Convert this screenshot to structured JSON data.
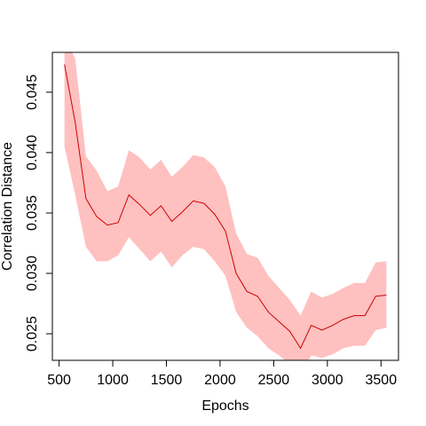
{
  "chart_data": {
    "type": "line",
    "title": "",
    "xlabel": "Epochs",
    "ylabel": "Correlation Distance",
    "xlim": [
      550,
      3550
    ],
    "ylim": [
      0.0228,
      0.0483
    ],
    "xticks": [
      500,
      1000,
      1500,
      2000,
      2500,
      3000,
      3500
    ],
    "xtick_labels": [
      "500",
      "1000",
      "1500",
      "2000",
      "2500",
      "3000",
      "3500"
    ],
    "yticks": [
      0.025,
      0.03,
      0.035,
      0.04,
      0.045
    ],
    "ytick_labels": [
      "0.025",
      "0.030",
      "0.035",
      "0.040",
      "0.045"
    ],
    "grid": false,
    "line_color": "#cc0000",
    "band_color": "#ffc0c0",
    "series": [
      {
        "x": [
          550,
          650,
          750,
          850,
          950,
          1050,
          1150,
          1250,
          1350,
          1450,
          1550,
          1650,
          1750,
          1850,
          1950,
          2050,
          2150,
          2250,
          2350,
          2450,
          2550,
          2650,
          2750,
          2850,
          2950,
          3050,
          3150,
          3250,
          3350,
          3450,
          3550
        ],
        "values": [
          0.0473,
          0.0425,
          0.0362,
          0.0347,
          0.034,
          0.0342,
          0.0365,
          0.0357,
          0.0348,
          0.0356,
          0.0343,
          0.0351,
          0.036,
          0.0358,
          0.0349,
          0.0335,
          0.03,
          0.0285,
          0.0281,
          0.0268,
          0.026,
          0.0252,
          0.0238,
          0.0257,
          0.0253,
          0.0257,
          0.0262,
          0.0265,
          0.0265,
          0.0281,
          0.0282
        ],
        "lower": [
          0.0405,
          0.0365,
          0.0322,
          0.031,
          0.031,
          0.0315,
          0.033,
          0.032,
          0.031,
          0.0318,
          0.0305,
          0.0315,
          0.0322,
          0.032,
          0.031,
          0.0298,
          0.0268,
          0.0255,
          0.0248,
          0.0238,
          0.0232,
          0.0225,
          0.0215,
          0.0232,
          0.023,
          0.0233,
          0.0238,
          0.024,
          0.024,
          0.0253,
          0.0255
        ],
        "upper": [
          0.0495,
          0.0478,
          0.0397,
          0.0385,
          0.0368,
          0.0372,
          0.0402,
          0.0396,
          0.0386,
          0.0394,
          0.038,
          0.0388,
          0.0398,
          0.0396,
          0.0388,
          0.0372,
          0.0333,
          0.0316,
          0.0313,
          0.0298,
          0.0288,
          0.0278,
          0.0265,
          0.0285,
          0.028,
          0.0283,
          0.0288,
          0.0292,
          0.0292,
          0.0309,
          0.031
        ]
      }
    ]
  }
}
